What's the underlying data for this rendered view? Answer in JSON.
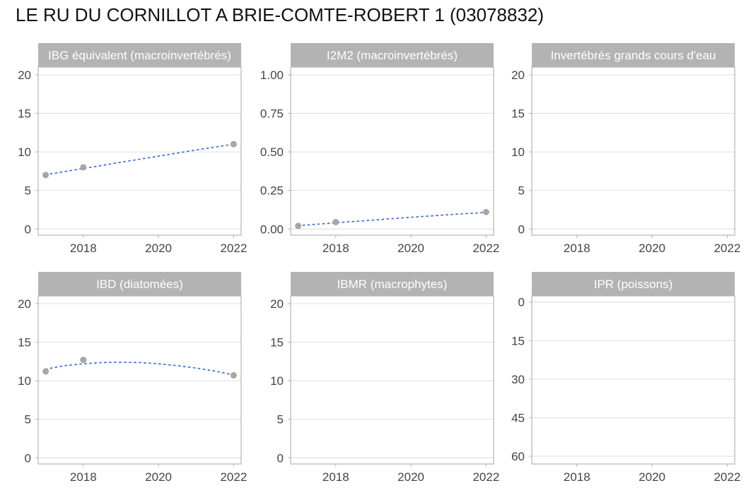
{
  "title": "LE RU DU CORNILLOT A BRIE-COMTE-ROBERT 1 (03078832)",
  "colors": {
    "strip": "#b3b3b3",
    "point": "#a6a6a6",
    "trend": "#3d6ee8",
    "grid": "#e3e3e3",
    "panel_border": "#b3b3b3"
  },
  "chart_data": [
    {
      "type": "scatter",
      "title": "IBG équivalent (macroinvertébrés)",
      "xlim": [
        2016.8,
        2022.2
      ],
      "x_ticks": [
        2018,
        2020,
        2022
      ],
      "ylim": [
        -0.8,
        21
      ],
      "y_ticks": [
        0,
        5,
        10,
        15,
        20
      ],
      "y_tick_labels": [
        "0",
        "5",
        "10",
        "15",
        "20"
      ],
      "y_reversed": false,
      "points": [
        {
          "x": 2017,
          "y": 7
        },
        {
          "x": 2018,
          "y": 8
        },
        {
          "x": 2022,
          "y": 11
        }
      ],
      "trend": [
        {
          "x": 2017,
          "y": 7.05
        },
        {
          "x": 2018,
          "y": 7.85
        },
        {
          "x": 2019,
          "y": 8.65
        },
        {
          "x": 2020,
          "y": 9.45
        },
        {
          "x": 2021,
          "y": 10.25
        },
        {
          "x": 2022,
          "y": 11.0
        }
      ],
      "grid": true
    },
    {
      "type": "scatter",
      "title": "I2M2 (macroinvertébrés)",
      "xlim": [
        2016.8,
        2022.2
      ],
      "x_ticks": [
        2018,
        2020,
        2022
      ],
      "ylim": [
        -0.04,
        1.05
      ],
      "y_ticks": [
        0,
        0.25,
        0.5,
        0.75,
        1.0
      ],
      "y_tick_labels": [
        "0.00",
        "0.25",
        "0.50",
        "0.75",
        "1.00"
      ],
      "y_reversed": false,
      "points": [
        {
          "x": 2017,
          "y": 0.02
        },
        {
          "x": 2018,
          "y": 0.045
        },
        {
          "x": 2022,
          "y": 0.11
        }
      ],
      "trend": [
        {
          "x": 2017,
          "y": 0.022
        },
        {
          "x": 2018,
          "y": 0.04
        },
        {
          "x": 2019,
          "y": 0.058
        },
        {
          "x": 2020,
          "y": 0.076
        },
        {
          "x": 2021,
          "y": 0.093
        },
        {
          "x": 2022,
          "y": 0.108
        }
      ],
      "grid": true
    },
    {
      "type": "scatter",
      "title": "Invertébrés grands cours d'eau",
      "xlim": [
        2016.8,
        2022.2
      ],
      "x_ticks": [
        2018,
        2020,
        2022
      ],
      "ylim": [
        -0.8,
        21
      ],
      "y_ticks": [
        0,
        5,
        10,
        15,
        20
      ],
      "y_tick_labels": [
        "0",
        "5",
        "10",
        "15",
        "20"
      ],
      "y_reversed": false,
      "points": [],
      "trend": [],
      "grid": true
    },
    {
      "type": "scatter",
      "title": "IBD (diatomées)",
      "xlim": [
        2016.8,
        2022.2
      ],
      "x_ticks": [
        2018,
        2020,
        2022
      ],
      "ylim": [
        -0.8,
        21
      ],
      "y_ticks": [
        0,
        5,
        10,
        15,
        20
      ],
      "y_tick_labels": [
        "0",
        "5",
        "10",
        "15",
        "20"
      ],
      "y_reversed": false,
      "points": [
        {
          "x": 2017,
          "y": 11.2
        },
        {
          "x": 2018,
          "y": 12.7
        },
        {
          "x": 2022,
          "y": 10.7
        }
      ],
      "trend": [
        {
          "x": 2017,
          "y": 11.5
        },
        {
          "x": 2017.5,
          "y": 11.95
        },
        {
          "x": 2018,
          "y": 12.2
        },
        {
          "x": 2018.5,
          "y": 12.35
        },
        {
          "x": 2019,
          "y": 12.4
        },
        {
          "x": 2019.5,
          "y": 12.35
        },
        {
          "x": 2020,
          "y": 12.2
        },
        {
          "x": 2020.5,
          "y": 11.95
        },
        {
          "x": 2021,
          "y": 11.65
        },
        {
          "x": 2021.5,
          "y": 11.25
        },
        {
          "x": 2022,
          "y": 10.75
        }
      ],
      "grid": true
    },
    {
      "type": "scatter",
      "title": "IBMR (macrophytes)",
      "xlim": [
        2016.8,
        2022.2
      ],
      "x_ticks": [
        2018,
        2020,
        2022
      ],
      "ylim": [
        -0.8,
        21
      ],
      "y_ticks": [
        0,
        5,
        10,
        15,
        20
      ],
      "y_tick_labels": [
        "0",
        "5",
        "10",
        "15",
        "20"
      ],
      "y_reversed": false,
      "points": [],
      "trend": [],
      "grid": true
    },
    {
      "type": "scatter",
      "title": "IPR (poissons)",
      "xlim": [
        2016.8,
        2022.2
      ],
      "x_ticks": [
        2018,
        2020,
        2022
      ],
      "ylim": [
        -2.4,
        63
      ],
      "y_ticks": [
        0,
        15,
        30,
        45,
        60
      ],
      "y_tick_labels": [
        "0",
        "15",
        "30",
        "45",
        "60"
      ],
      "y_reversed": true,
      "points": [],
      "trend": [],
      "grid": true
    }
  ]
}
